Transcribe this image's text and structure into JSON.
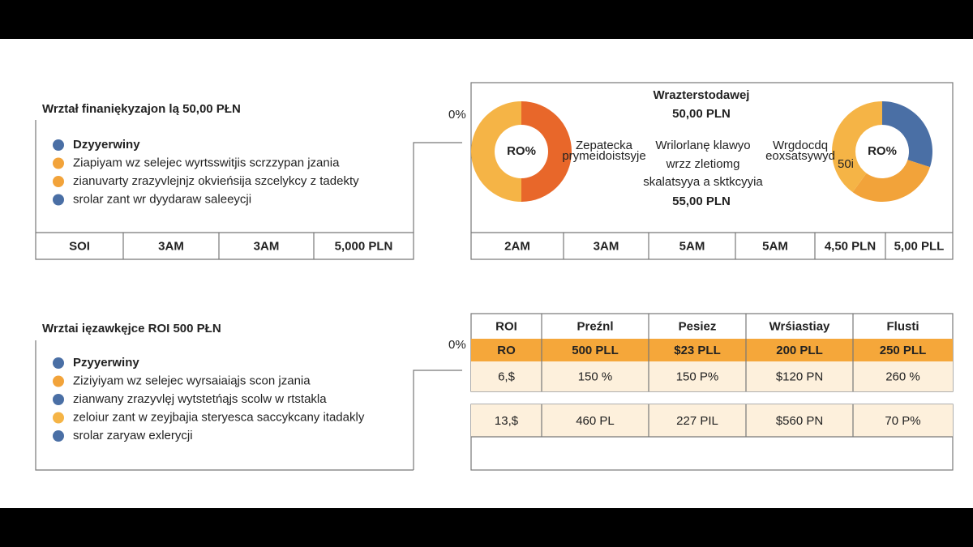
{
  "section1": {
    "title": "Wrztał finaniękyzajon lą 50,00 PŁN",
    "scale_label": "0%",
    "legend": [
      {
        "text": "Dzyyerwiny",
        "color": "#4a6fa5"
      },
      {
        "text": "Ziapiyam wz selejec wyrtsswitjis scrzzypan jzania",
        "color": "#f2a33a"
      },
      {
        "text": "zianuvarty zrazyvlejnjz okvieńsija szcelykcy z tadekty",
        "color": "#f2a33a"
      },
      {
        "text": "srolar zant wr dyydaraw saleeycji",
        "color": "#4a6fa5"
      }
    ],
    "table": [
      "SOI",
      "3AM",
      "3AM",
      "5,000 PLN"
    ]
  },
  "summary": {
    "heading": "Wrazterstodawej",
    "amount": "50,00 PLN",
    "lines": [
      "Wrilorlanę klawyo",
      "wrzz zletiomg",
      "skalatsyya a sktkcyyia"
    ],
    "total": "55,00 PLN",
    "table": [
      "2AM",
      "3AM",
      "5AM",
      "5AM",
      "4,50 PLN",
      "5,00 PLL"
    ]
  },
  "donuts": [
    {
      "label": "RO%",
      "caption": [
        "Zepatecka",
        "prymeidoistsyje"
      ],
      "segments": [
        {
          "color": "#e8672a",
          "value": 50
        },
        {
          "color": "#f5b446",
          "value": 50
        }
      ]
    },
    {
      "label": "RO%",
      "caption": [
        "Wrgdocdq",
        "eoxsatsywyd"
      ],
      "segment_label": "50i",
      "segments": [
        {
          "color": "#4a6fa5",
          "value": 30
        },
        {
          "color": "#f2a33a",
          "value": 30
        },
        {
          "color": "#f5b446",
          "value": 40
        }
      ]
    }
  ],
  "section2": {
    "title": "Wrztai ięzawkęjce ROI 500 PŁN",
    "scale_label": "0%",
    "legend": [
      {
        "text": "Pzyyerwiny",
        "color": "#4a6fa5"
      },
      {
        "text": "Ziziyiyam wz selejec wyrsaiaiąjs scon jzania",
        "color": "#f2a33a"
      },
      {
        "text": "zianwany zrazyvlęj wytstetńąjs scolw w rtstakla",
        "color": "#4a6fa5"
      },
      {
        "text": "zeloiur zant w zeyjbajia steryesca saccykcany itadakly",
        "color": "#f5b446"
      },
      {
        "text": "srolar zaryaw exlerycji",
        "color": "#4a6fa5"
      }
    ],
    "table": {
      "header": [
        "ROI",
        "Preźnl",
        "Pesiez",
        "Wrśiastiay",
        "Flusti"
      ],
      "rows": [
        [
          "RO",
          "500 PLL",
          "$23 PLL",
          "200 PLL",
          "250 PLL"
        ],
        [
          "6,$",
          "150 %",
          "150 P%",
          "$120 PN",
          "260 %"
        ],
        [
          "13,$",
          "460 PL",
          "227 PIL",
          "$560 PN",
          "70 P%"
        ]
      ]
    }
  }
}
